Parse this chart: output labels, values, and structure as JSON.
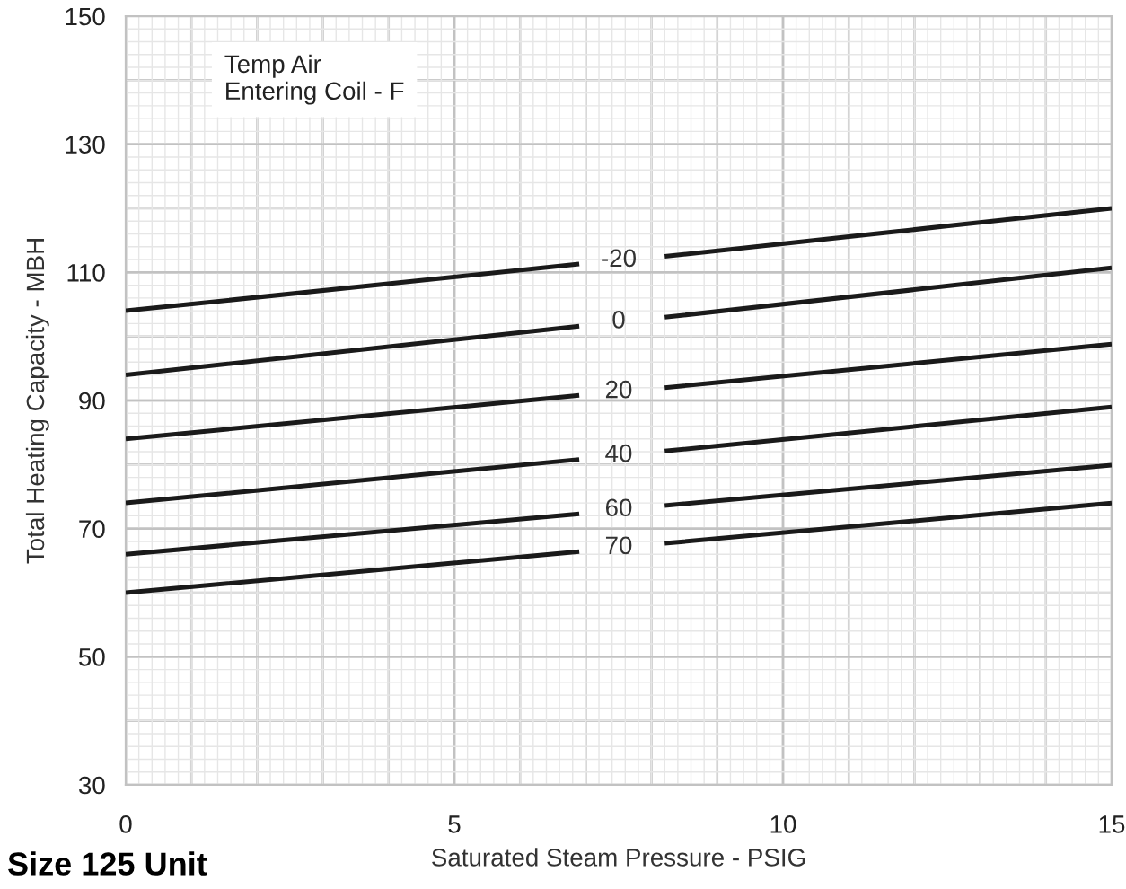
{
  "chart_data": {
    "type": "line",
    "title": "Size 125 Unit",
    "xlabel": "Saturated Steam Pressure - PSIG",
    "ylabel": "Total Heating Capacity - MBH",
    "legend_title": "Temp Air\nEntering Coil - F",
    "xlim": [
      0,
      15
    ],
    "xticks": [
      0,
      5,
      10,
      15
    ],
    "ylim": [
      30,
      150
    ],
    "yticks": [
      30,
      50,
      70,
      90,
      110,
      130,
      150
    ],
    "grid": true,
    "legend": false,
    "marker": "none",
    "line_style": "solid",
    "series": [
      {
        "name": "-20",
        "color": "#1a1a1a",
        "x": [
          0,
          6.9,
          7.5,
          8.2,
          15
        ],
        "values": [
          104,
          111.3,
          null,
          112.5,
          120
        ]
      },
      {
        "name": "0",
        "color": "#1a1a1a",
        "x": [
          0,
          6.9,
          7.5,
          8.2,
          15
        ],
        "values": [
          94,
          101.6,
          null,
          103,
          110.7
        ]
      },
      {
        "name": "20",
        "color": "#1a1a1a",
        "x": [
          0,
          6.9,
          7.5,
          8.2,
          15
        ],
        "values": [
          84,
          90.8,
          null,
          92,
          98.8
        ]
      },
      {
        "name": "40",
        "color": "#1a1a1a",
        "x": [
          0,
          6.9,
          7.5,
          8.2,
          15
        ],
        "values": [
          74,
          80.8,
          null,
          82.1,
          89
        ]
      },
      {
        "name": "60",
        "color": "#1a1a1a",
        "x": [
          0,
          6.9,
          7.5,
          8.2,
          15
        ],
        "values": [
          66,
          72.3,
          null,
          73.6,
          79.9
        ]
      },
      {
        "name": "70",
        "color": "#1a1a1a",
        "x": [
          0,
          6.9,
          7.5,
          8.2,
          15
        ],
        "values": [
          60,
          66.4,
          null,
          67.7,
          74
        ]
      }
    ]
  }
}
